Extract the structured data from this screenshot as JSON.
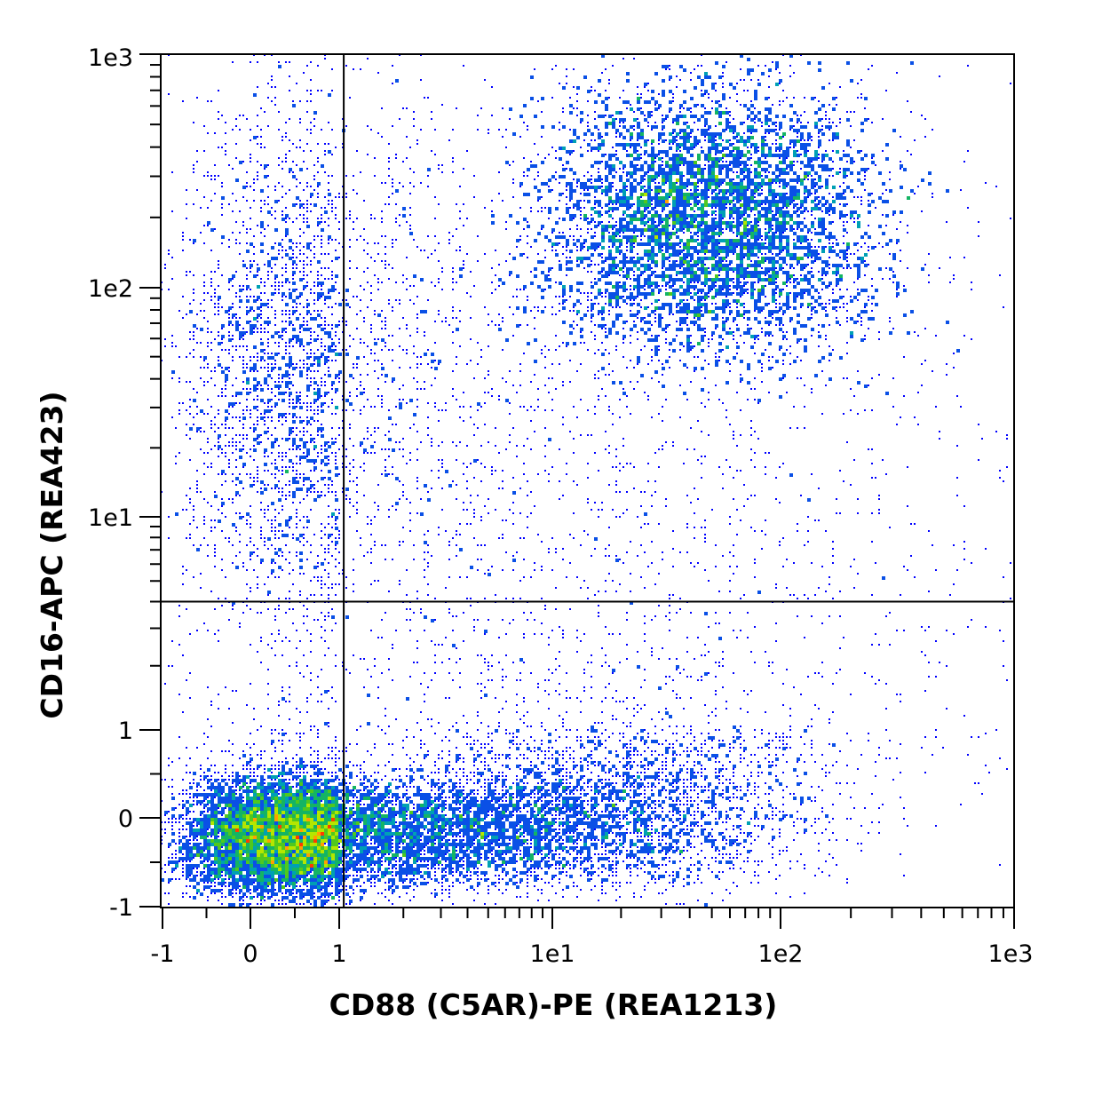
{
  "chart_data": {
    "type": "scatter",
    "title": "",
    "xlabel": "CD88 (C5AR)-PE (REA1213)",
    "ylabel": "CD16-APC (REA423)",
    "x_scale": "biexponential",
    "y_scale": "biexponential",
    "xlim": [
      -1,
      1000
    ],
    "ylim": [
      -1,
      1000
    ],
    "x_ticks": [
      {
        "value": -1,
        "label": "-1"
      },
      {
        "value": 0,
        "label": "0"
      },
      {
        "value": 1,
        "label": "1"
      },
      {
        "value": 10,
        "label": "1e1"
      },
      {
        "value": 100,
        "label": "1e2"
      },
      {
        "value": 1000,
        "label": "1e3"
      }
    ],
    "y_ticks": [
      {
        "value": -1,
        "label": "-1"
      },
      {
        "value": 0,
        "label": "0"
      },
      {
        "value": 1,
        "label": "1"
      },
      {
        "value": 10,
        "label": "1e1"
      },
      {
        "value": 100,
        "label": "1e2"
      },
      {
        "value": 1000,
        "label": "1e3"
      }
    ],
    "quadrant_gate": {
      "x": 1.05,
      "y": 4.0
    },
    "density_colors": [
      "#0000ff",
      "#0a50e6",
      "#00a0b4",
      "#14b464",
      "#50c81e",
      "#b4e600",
      "#ffa000",
      "#ff3c00"
    ],
    "populations": [
      {
        "name": "",
        "center": [
          0.3,
          -0.2
        ],
        "spread": [
          0.55,
          0.35
        ],
        "relative_count": 0.23
      },
      {
        "name": "",
        "center": [
          2.6,
          -0.15
        ],
        "spread": [
          0.6,
          0.32
        ],
        "relative_count": 0.17
      },
      {
        "name": "",
        "center": [
          22,
          0.2
        ],
        "spread": [
          0.45,
          0.5
        ],
        "relative_count": 0.08
      },
      {
        "name": "",
        "center": [
          50,
          200
        ],
        "spread": [
          0.35,
          0.28
        ],
        "relative_count": 0.3
      },
      {
        "name": "",
        "center": [
          0.4,
          50
        ],
        "spread": [
          0.6,
          0.5
        ],
        "relative_count": 0.08
      },
      {
        "name": "",
        "center": [
          6,
          20
        ],
        "spread": [
          1.2,
          1.1
        ],
        "relative_count": 0.14
      }
    ],
    "grid": false,
    "legend": "none"
  }
}
